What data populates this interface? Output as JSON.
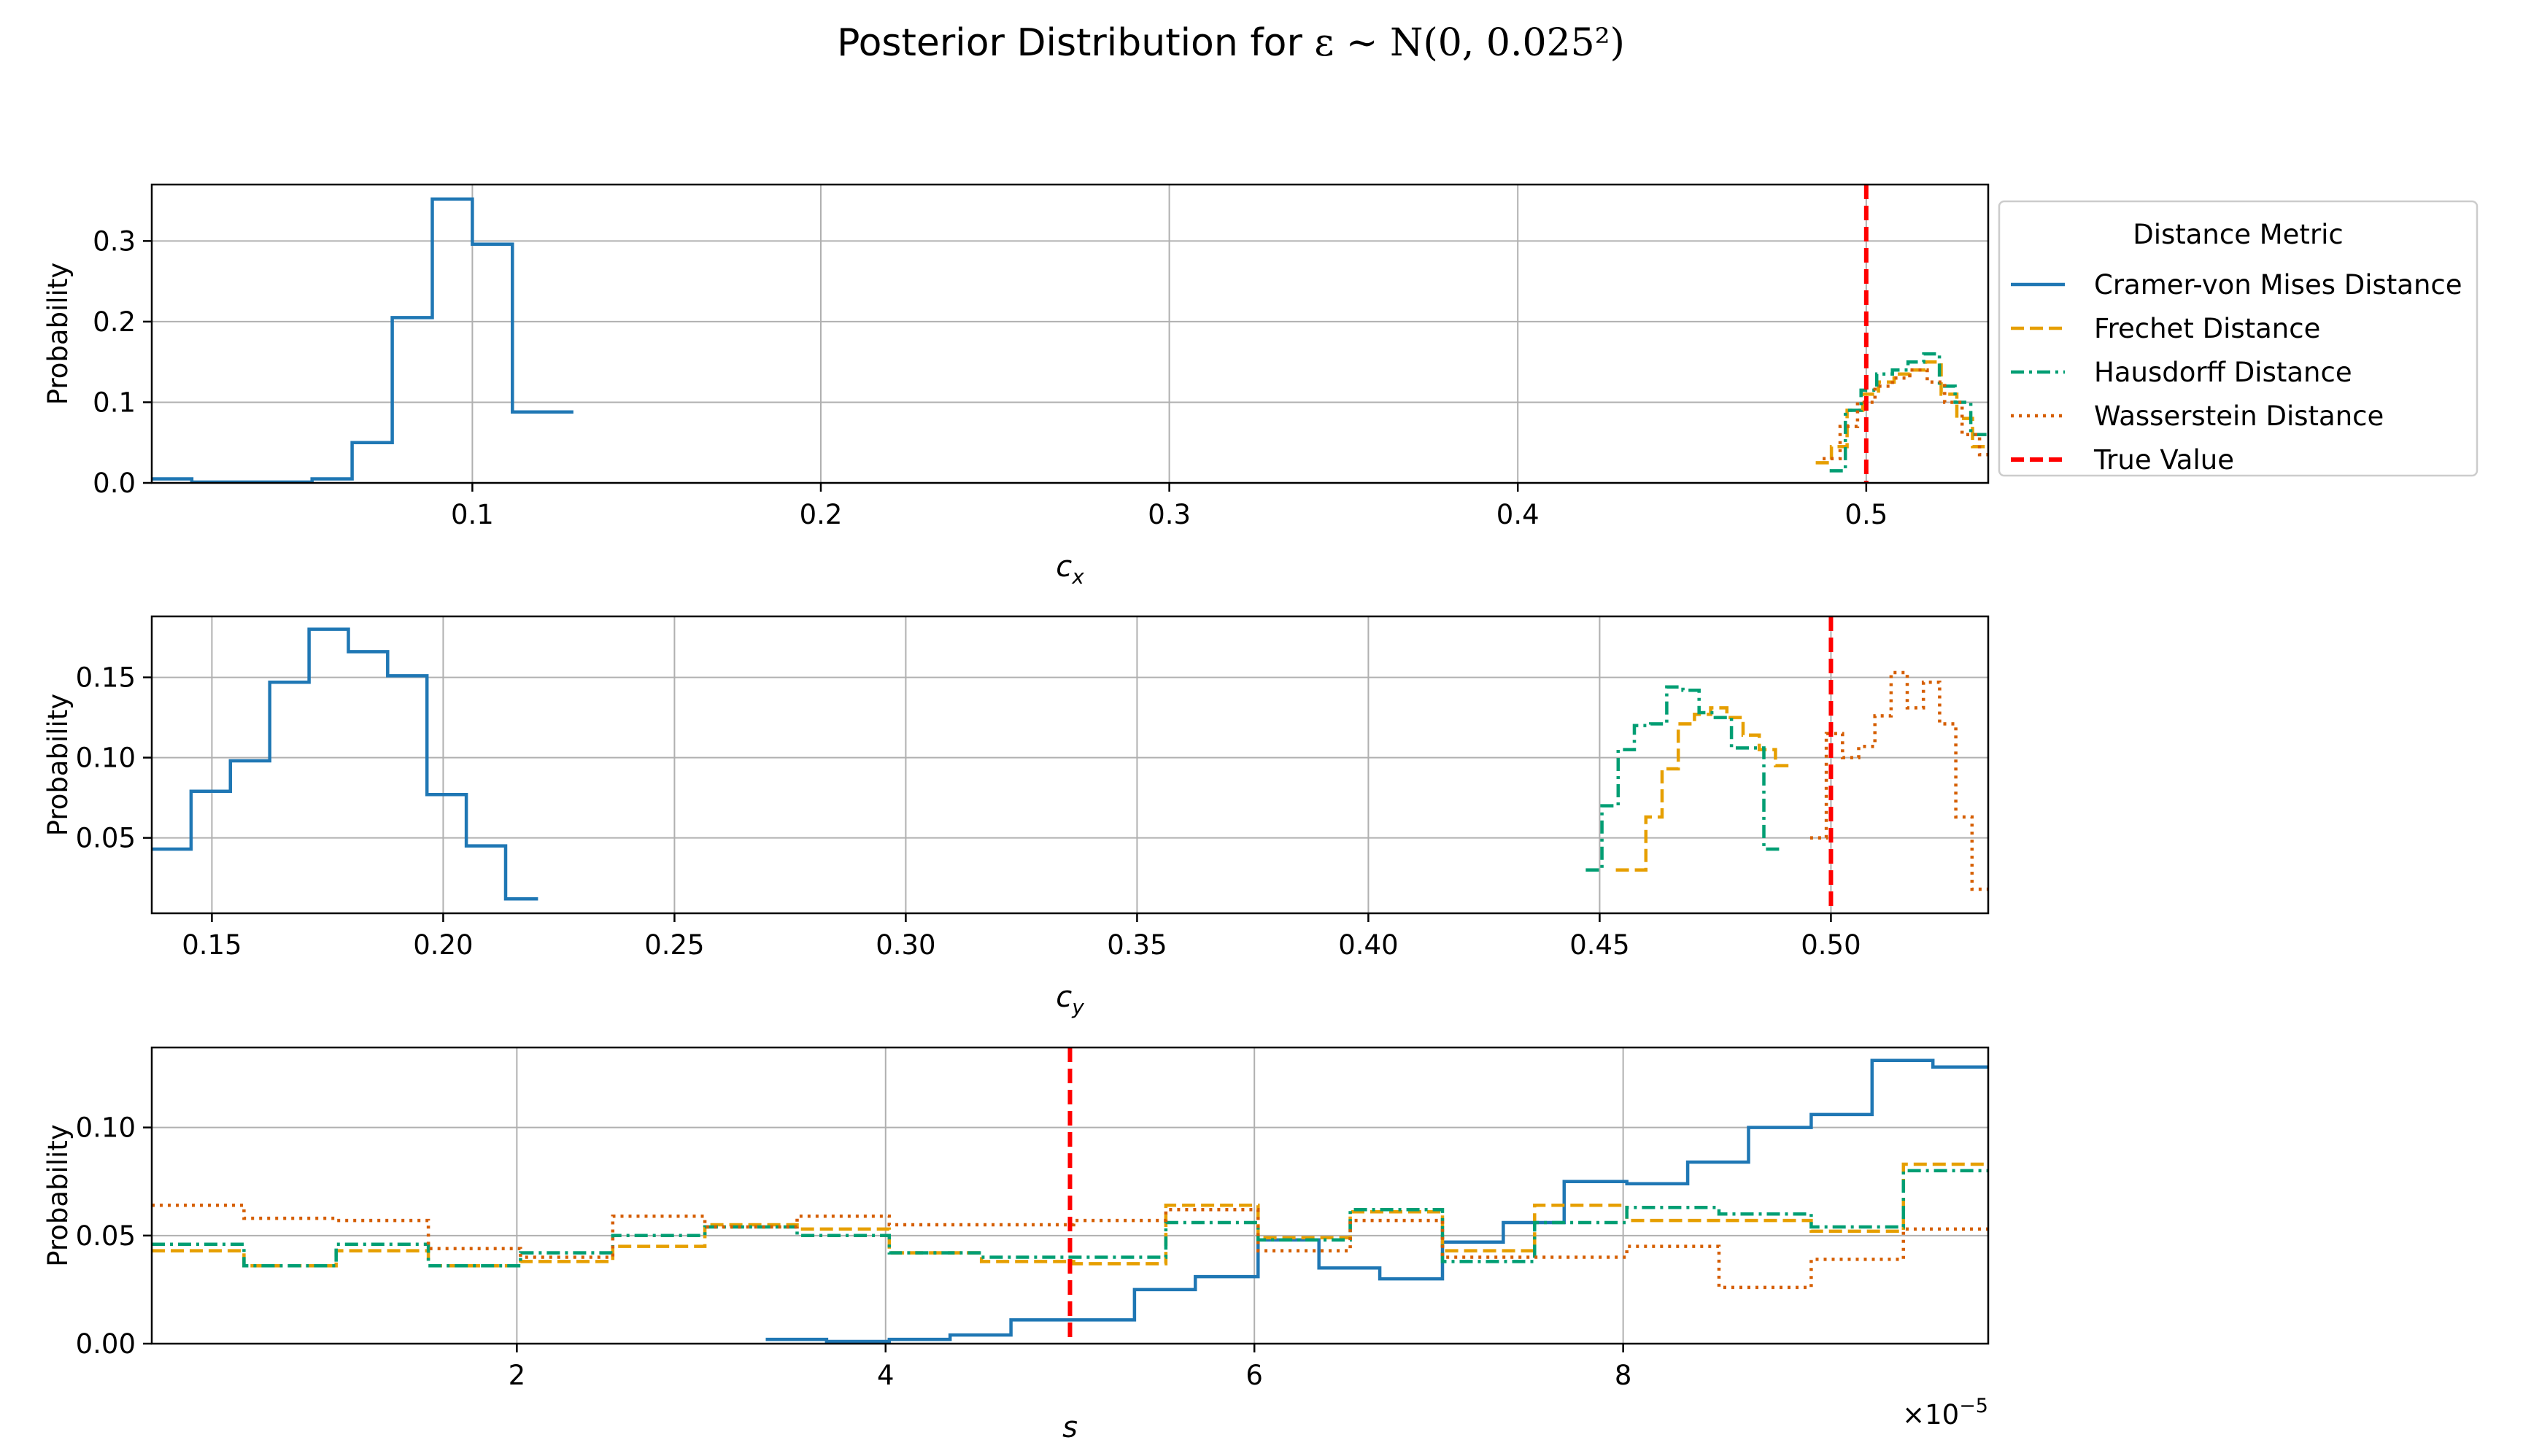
{
  "figure": {
    "title": "Posterior Distribution for ",
    "title_math": "ε ~ N(0, 0.025²)",
    "legend": {
      "title": "Distance Metric",
      "placement": "outside-right-of-top-panel",
      "entries": [
        {
          "label": "Cramer-von Mises Distance",
          "color": "#1f77b4",
          "style": "solid"
        },
        {
          "label": "Frechet Distance",
          "color": "#e69f00",
          "style": "dashed"
        },
        {
          "label": "Hausdorff Distance",
          "color": "#009e73",
          "style": "dashdot"
        },
        {
          "label": "Wasserstein Distance",
          "color": "#d55e00",
          "style": "dotted"
        },
        {
          "label": "True Value",
          "color": "#ff0000",
          "style": "dashed"
        }
      ]
    },
    "colors": {
      "Cramer-von Mises Distance": "#1f77b4",
      "Frechet Distance": "#e69f00",
      "Hausdorff Distance": "#009e73",
      "Wasserstein Distance": "#d55e00",
      "True Value": "#ff0000"
    }
  },
  "chart_data": [
    {
      "type": "line",
      "subtype": "step-histogram",
      "xlabel": "c",
      "xlabel_sub": "x",
      "ylabel": "Probability",
      "xlim": [
        0.008,
        0.535
      ],
      "ylim": [
        0,
        0.37
      ],
      "grid": true,
      "true_value": 0.5,
      "xticks": [
        0.1,
        0.2,
        0.3,
        0.4,
        0.5
      ],
      "xtick_labels": [
        "0.1",
        "0.2",
        "0.3",
        "0.4",
        "0.5"
      ],
      "yticks": [
        0.0,
        0.1,
        0.2,
        0.3
      ],
      "ytick_labels": [
        "0.0",
        "0.1",
        "0.2",
        "0.3"
      ],
      "series": [
        {
          "name": "Cramer-von Mises Distance",
          "edges": [
            0.008,
            0.0195,
            0.031,
            0.0425,
            0.054,
            0.0655,
            0.077,
            0.0885,
            0.1,
            0.1115,
            0.123,
            0.129
          ],
          "values": [
            0.005,
            0.001,
            0.001,
            0.001,
            0.005,
            0.05,
            0.205,
            0.352,
            0.296,
            0.088,
            0.088
          ]
        },
        {
          "name": "Frechet Distance",
          "edges": [
            0.4855,
            0.49,
            0.4945,
            0.499,
            0.5035,
            0.508,
            0.5125,
            0.517,
            0.5215,
            0.526,
            0.5305,
            0.535
          ],
          "values": [
            0.025,
            0.045,
            0.09,
            0.11,
            0.125,
            0.135,
            0.14,
            0.15,
            0.11,
            0.08,
            0.045
          ]
        },
        {
          "name": "Hausdorff Distance",
          "edges": [
            0.4895,
            0.494,
            0.4985,
            0.503,
            0.5075,
            0.512,
            0.5165,
            0.521,
            0.5255,
            0.53,
            0.5345
          ],
          "values": [
            0.015,
            0.09,
            0.115,
            0.135,
            0.14,
            0.15,
            0.16,
            0.12,
            0.1,
            0.06
          ]
        },
        {
          "name": "Wasserstein Distance",
          "edges": [
            0.4875,
            0.4925,
            0.4975,
            0.5025,
            0.5075,
            0.5125,
            0.5175,
            0.5225,
            0.5275,
            0.5325,
            0.535
          ],
          "values": [
            0.03,
            0.07,
            0.1,
            0.12,
            0.13,
            0.14,
            0.125,
            0.1,
            0.06,
            0.035
          ]
        }
      ]
    },
    {
      "type": "line",
      "subtype": "step-histogram",
      "xlabel": "c",
      "xlabel_sub": "y",
      "ylabel": "Probability",
      "xlim": [
        0.137,
        0.534
      ],
      "ylim": [
        0.003,
        0.188
      ],
      "grid": true,
      "true_value": 0.5,
      "xticks": [
        0.15,
        0.2,
        0.25,
        0.3,
        0.35,
        0.4,
        0.45,
        0.5
      ],
      "xtick_labels": [
        "0.15",
        "0.20",
        "0.25",
        "0.30",
        "0.35",
        "0.40",
        "0.45",
        "0.50"
      ],
      "yticks": [
        0.05,
        0.1,
        0.15
      ],
      "ytick_labels": [
        "0.05",
        "0.10",
        "0.15"
      ],
      "series": [
        {
          "name": "Cramer-von Mises Distance",
          "edges": [
            0.137,
            0.1455,
            0.154,
            0.1625,
            0.171,
            0.1795,
            0.188,
            0.1965,
            0.205,
            0.2135,
            0.2205
          ],
          "values": [
            0.043,
            0.079,
            0.098,
            0.147,
            0.18,
            0.166,
            0.151,
            0.077,
            0.045,
            0.012
          ]
        },
        {
          "name": "Frechet Distance",
          "edges": [
            0.4535,
            0.4565,
            0.46,
            0.4635,
            0.467,
            0.4705,
            0.474,
            0.4775,
            0.481,
            0.4845,
            0.488,
            0.4915
          ],
          "values": [
            0.03,
            0.03,
            0.063,
            0.093,
            0.121,
            0.127,
            0.131,
            0.125,
            0.114,
            0.105,
            0.095
          ]
        },
        {
          "name": "Hausdorff Distance",
          "edges": [
            0.447,
            0.4505,
            0.454,
            0.4575,
            0.461,
            0.4645,
            0.468,
            0.4715,
            0.475,
            0.4785,
            0.482,
            0.4855,
            0.4895
          ],
          "values": [
            0.03,
            0.07,
            0.105,
            0.12,
            0.121,
            0.144,
            0.142,
            0.128,
            0.125,
            0.106,
            0.106,
            0.043
          ]
        },
        {
          "name": "Wasserstein Distance",
          "edges": [
            0.4955,
            0.499,
            0.5025,
            0.506,
            0.5095,
            0.513,
            0.5165,
            0.52,
            0.5235,
            0.527,
            0.5305,
            0.534
          ],
          "values": [
            0.05,
            0.115,
            0.1,
            0.107,
            0.126,
            0.153,
            0.131,
            0.147,
            0.121,
            0.063,
            0.018
          ]
        }
      ]
    },
    {
      "type": "line",
      "subtype": "step-histogram",
      "xlabel": "s",
      "ylabel": "Probability",
      "xlim": [
        2e-07,
        9.98e-05
      ],
      "ylim": [
        0,
        0.137
      ],
      "grid": true,
      "true_value": 5e-05,
      "offset_text": "×10",
      "offset_exponent": "−5",
      "xticks": [
        2e-05,
        4e-05,
        6e-05,
        8e-05
      ],
      "xtick_labels": [
        "2",
        "4",
        "6",
        "8"
      ],
      "yticks": [
        0.0,
        0.05,
        0.1
      ],
      "ytick_labels": [
        "0.00",
        "0.05",
        "0.10"
      ],
      "series": [
        {
          "name": "Cramer-von Mises Distance",
          "edges": [
            3.35e-05,
            3.68e-05,
            4.02e-05,
            4.35e-05,
            4.68e-05,
            5.02e-05,
            5.35e-05,
            5.68e-05,
            6.02e-05,
            6.35e-05,
            6.68e-05,
            7.02e-05,
            7.35e-05,
            7.68e-05,
            8.02e-05,
            8.35e-05,
            8.68e-05,
            9.02e-05,
            9.35e-05,
            9.68e-05,
            9.98e-05
          ],
          "values": [
            0.002,
            0.001,
            0.002,
            0.004,
            0.011,
            0.011,
            0.025,
            0.031,
            0.048,
            0.035,
            0.03,
            0.047,
            0.056,
            0.075,
            0.074,
            0.084,
            0.1,
            0.106,
            0.131,
            0.128
          ]
        },
        {
          "name": "Frechet Distance",
          "edges": [
            2e-07,
            5.2e-06,
            1.02e-05,
            1.52e-05,
            2.02e-05,
            2.52e-05,
            3.02e-05,
            3.52e-05,
            4.02e-05,
            4.52e-05,
            5.02e-05,
            5.52e-05,
            6.02e-05,
            6.52e-05,
            7.02e-05,
            7.52e-05,
            8.02e-05,
            8.52e-05,
            9.02e-05,
            9.52e-05,
            9.98e-05
          ],
          "values": [
            0.043,
            0.036,
            0.043,
            0.036,
            0.038,
            0.045,
            0.055,
            0.053,
            0.042,
            0.038,
            0.037,
            0.064,
            0.049,
            0.061,
            0.043,
            0.064,
            0.057,
            0.057,
            0.052,
            0.083
          ]
        },
        {
          "name": "Hausdorff Distance",
          "edges": [
            2e-07,
            5.2e-06,
            1.02e-05,
            1.52e-05,
            2.02e-05,
            2.52e-05,
            3.02e-05,
            3.52e-05,
            4.02e-05,
            4.52e-05,
            5.02e-05,
            5.52e-05,
            6.02e-05,
            6.52e-05,
            7.02e-05,
            7.52e-05,
            8.02e-05,
            8.52e-05,
            9.02e-05,
            9.52e-05,
            9.98e-05
          ],
          "values": [
            0.046,
            0.036,
            0.046,
            0.036,
            0.042,
            0.05,
            0.054,
            0.05,
            0.042,
            0.04,
            0.04,
            0.056,
            0.048,
            0.062,
            0.038,
            0.056,
            0.063,
            0.06,
            0.054,
            0.08
          ]
        },
        {
          "name": "Wasserstein Distance",
          "edges": [
            2e-07,
            5.2e-06,
            1.02e-05,
            1.52e-05,
            2.02e-05,
            2.52e-05,
            3.02e-05,
            3.52e-05,
            4.02e-05,
            4.52e-05,
            5.02e-05,
            5.52e-05,
            6.02e-05,
            6.52e-05,
            7.02e-05,
            7.52e-05,
            8.02e-05,
            8.52e-05,
            9.02e-05,
            9.52e-05,
            9.98e-05
          ],
          "values": [
            0.064,
            0.058,
            0.057,
            0.044,
            0.04,
            0.059,
            0.054,
            0.059,
            0.055,
            0.055,
            0.057,
            0.062,
            0.043,
            0.057,
            0.04,
            0.04,
            0.045,
            0.026,
            0.039,
            0.053
          ]
        }
      ]
    }
  ]
}
